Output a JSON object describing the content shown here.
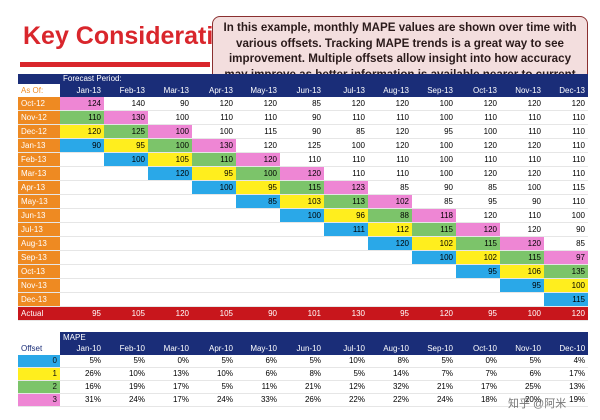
{
  "title": "Key Considerations",
  "callout": "In this example, monthly MAPE values are shown over time with various offsets. Tracking MAPE trends is a great way to see improvement.  Multiple offsets allow insight into how accuracy may improve as better information is available nearer to current period.",
  "forecast_period_label": "Forecast Period:",
  "as_of_label": "As Of:",
  "months": [
    "Jan-13",
    "Feb-13",
    "Mar-13",
    "Apr-13",
    "May-13",
    "Jun-13",
    "Jul-13",
    "Aug-13",
    "Sep-13",
    "Oct-13",
    "Nov-13",
    "Dec-13"
  ],
  "forecast_rows": [
    {
      "label": "Oct-12",
      "cells": [
        [
          "124",
          "pink"
        ],
        [
          "140",
          ""
        ],
        [
          "90",
          ""
        ],
        [
          "120",
          ""
        ],
        [
          "120",
          ""
        ],
        [
          "85",
          ""
        ],
        [
          "120",
          ""
        ],
        [
          "120",
          ""
        ],
        [
          "100",
          ""
        ],
        [
          "120",
          ""
        ],
        [
          "120",
          ""
        ],
        [
          "120",
          ""
        ]
      ]
    },
    {
      "label": "Nov-12",
      "cells": [
        [
          "110",
          "green"
        ],
        [
          "130",
          "pink"
        ],
        [
          "100",
          ""
        ],
        [
          "110",
          ""
        ],
        [
          "110",
          ""
        ],
        [
          "90",
          ""
        ],
        [
          "110",
          ""
        ],
        [
          "110",
          ""
        ],
        [
          "100",
          ""
        ],
        [
          "110",
          ""
        ],
        [
          "110",
          ""
        ],
        [
          "110",
          ""
        ]
      ]
    },
    {
      "label": "Dec-12",
      "cells": [
        [
          "120",
          "yellow"
        ],
        [
          "125",
          "green"
        ],
        [
          "100",
          "pink"
        ],
        [
          "100",
          ""
        ],
        [
          "115",
          ""
        ],
        [
          "90",
          ""
        ],
        [
          "85",
          ""
        ],
        [
          "120",
          ""
        ],
        [
          "95",
          ""
        ],
        [
          "100",
          ""
        ],
        [
          "110",
          ""
        ],
        [
          "110",
          ""
        ]
      ]
    },
    {
      "label": "Jan-13",
      "cells": [
        [
          "90",
          "blue"
        ],
        [
          "95",
          "yellow"
        ],
        [
          "100",
          "green"
        ],
        [
          "130",
          "pink"
        ],
        [
          "120",
          ""
        ],
        [
          "125",
          ""
        ],
        [
          "100",
          ""
        ],
        [
          "120",
          ""
        ],
        [
          "100",
          ""
        ],
        [
          "120",
          ""
        ],
        [
          "120",
          ""
        ],
        [
          "110",
          ""
        ]
      ]
    },
    {
      "label": "Feb-13",
      "cells": [
        [
          "",
          ""
        ],
        [
          "100",
          "blue"
        ],
        [
          "105",
          "yellow"
        ],
        [
          "110",
          "green"
        ],
        [
          "120",
          "pink"
        ],
        [
          "110",
          ""
        ],
        [
          "110",
          ""
        ],
        [
          "110",
          ""
        ],
        [
          "100",
          ""
        ],
        [
          "110",
          ""
        ],
        [
          "110",
          ""
        ],
        [
          "110",
          ""
        ]
      ]
    },
    {
      "label": "Mar-13",
      "cells": [
        [
          "",
          ""
        ],
        [
          "",
          ""
        ],
        [
          "120",
          "blue"
        ],
        [
          "95",
          "yellow"
        ],
        [
          "100",
          "green"
        ],
        [
          "120",
          "pink"
        ],
        [
          "110",
          ""
        ],
        [
          "110",
          ""
        ],
        [
          "100",
          ""
        ],
        [
          "120",
          ""
        ],
        [
          "120",
          ""
        ],
        [
          "110",
          ""
        ]
      ]
    },
    {
      "label": "Apr-13",
      "cells": [
        [
          "",
          ""
        ],
        [
          "",
          ""
        ],
        [
          "",
          ""
        ],
        [
          "100",
          "blue"
        ],
        [
          "95",
          "yellow"
        ],
        [
          "115",
          "green"
        ],
        [
          "123",
          "pink"
        ],
        [
          "85",
          ""
        ],
        [
          "90",
          ""
        ],
        [
          "85",
          ""
        ],
        [
          "100",
          ""
        ],
        [
          "115",
          ""
        ]
      ]
    },
    {
      "label": "May-13",
      "cells": [
        [
          "",
          ""
        ],
        [
          "",
          ""
        ],
        [
          "",
          ""
        ],
        [
          "",
          ""
        ],
        [
          "85",
          "blue"
        ],
        [
          "103",
          "yellow"
        ],
        [
          "113",
          "green"
        ],
        [
          "102",
          "pink"
        ],
        [
          "85",
          ""
        ],
        [
          "95",
          ""
        ],
        [
          "90",
          ""
        ],
        [
          "110",
          ""
        ]
      ]
    },
    {
      "label": "Jun-13",
      "cells": [
        [
          "",
          ""
        ],
        [
          "",
          ""
        ],
        [
          "",
          ""
        ],
        [
          "",
          ""
        ],
        [
          "",
          ""
        ],
        [
          "100",
          "blue"
        ],
        [
          "96",
          "yellow"
        ],
        [
          "88",
          "green"
        ],
        [
          "118",
          "pink"
        ],
        [
          "120",
          ""
        ],
        [
          "110",
          ""
        ],
        [
          "100",
          ""
        ]
      ]
    },
    {
      "label": "Jul-13",
      "cells": [
        [
          "",
          ""
        ],
        [
          "",
          ""
        ],
        [
          "",
          ""
        ],
        [
          "",
          ""
        ],
        [
          "",
          ""
        ],
        [
          "",
          ""
        ],
        [
          "111",
          "blue"
        ],
        [
          "112",
          "yellow"
        ],
        [
          "115",
          "green"
        ],
        [
          "120",
          "pink"
        ],
        [
          "120",
          ""
        ],
        [
          "90",
          ""
        ]
      ]
    },
    {
      "label": "Aug-13",
      "cells": [
        [
          "",
          ""
        ],
        [
          "",
          ""
        ],
        [
          "",
          ""
        ],
        [
          "",
          ""
        ],
        [
          "",
          ""
        ],
        [
          "",
          ""
        ],
        [
          "",
          ""
        ],
        [
          "120",
          "blue"
        ],
        [
          "102",
          "yellow"
        ],
        [
          "115",
          "green"
        ],
        [
          "120",
          "pink"
        ],
        [
          "85",
          ""
        ]
      ]
    },
    {
      "label": "Sep-13",
      "cells": [
        [
          "",
          ""
        ],
        [
          "",
          ""
        ],
        [
          "",
          ""
        ],
        [
          "",
          ""
        ],
        [
          "",
          ""
        ],
        [
          "",
          ""
        ],
        [
          "",
          ""
        ],
        [
          "",
          ""
        ],
        [
          "100",
          "blue"
        ],
        [
          "102",
          "yellow"
        ],
        [
          "115",
          "green"
        ],
        [
          "97",
          "pink"
        ]
      ]
    },
    {
      "label": "Oct-13",
      "cells": [
        [
          "",
          ""
        ],
        [
          "",
          ""
        ],
        [
          "",
          ""
        ],
        [
          "",
          ""
        ],
        [
          "",
          ""
        ],
        [
          "",
          ""
        ],
        [
          "",
          ""
        ],
        [
          "",
          ""
        ],
        [
          "",
          ""
        ],
        [
          "95",
          "blue"
        ],
        [
          "106",
          "yellow"
        ],
        [
          "135",
          "green"
        ]
      ]
    },
    {
      "label": "Nov-13",
      "cells": [
        [
          "",
          ""
        ],
        [
          "",
          ""
        ],
        [
          "",
          ""
        ],
        [
          "",
          ""
        ],
        [
          "",
          ""
        ],
        [
          "",
          ""
        ],
        [
          "",
          ""
        ],
        [
          "",
          ""
        ],
        [
          "",
          ""
        ],
        [
          "",
          ""
        ],
        [
          "95",
          "blue"
        ],
        [
          "100",
          "yellow"
        ]
      ]
    },
    {
      "label": "Dec-13",
      "cells": [
        [
          "",
          ""
        ],
        [
          "",
          ""
        ],
        [
          "",
          ""
        ],
        [
          "",
          ""
        ],
        [
          "",
          ""
        ],
        [
          "",
          ""
        ],
        [
          "",
          ""
        ],
        [
          "",
          ""
        ],
        [
          "",
          ""
        ],
        [
          "",
          ""
        ],
        [
          "",
          ""
        ],
        [
          "115",
          "blue"
        ]
      ]
    }
  ],
  "actual": {
    "label": "Actual",
    "values": [
      "95",
      "105",
      "120",
      "105",
      "90",
      "101",
      "130",
      "95",
      "120",
      "95",
      "100",
      "120"
    ]
  },
  "mape_label": "MAPE",
  "offset_label": "Offset",
  "mape_months": [
    "Jan-10",
    "Feb-10",
    "Mar-10",
    "Apr-10",
    "May-10",
    "Jun-10",
    "Jul-10",
    "Aug-10",
    "Sep-10",
    "Oct-10",
    "Nov-10",
    "Dec-10"
  ],
  "mape_rows": [
    {
      "offset": "0",
      "color": "blue",
      "values": [
        "5%",
        "5%",
        "0%",
        "5%",
        "6%",
        "5%",
        "10%",
        "8%",
        "5%",
        "0%",
        "5%",
        "4%"
      ]
    },
    {
      "offset": "1",
      "color": "yellow",
      "values": [
        "26%",
        "10%",
        "13%",
        "10%",
        "6%",
        "8%",
        "5%",
        "14%",
        "7%",
        "7%",
        "6%",
        "17%"
      ]
    },
    {
      "offset": "2",
      "color": "green",
      "values": [
        "16%",
        "19%",
        "17%",
        "5%",
        "11%",
        "21%",
        "12%",
        "32%",
        "21%",
        "17%",
        "25%",
        "13%"
      ]
    },
    {
      "offset": "3",
      "color": "pink",
      "values": [
        "31%",
        "24%",
        "17%",
        "24%",
        "33%",
        "26%",
        "22%",
        "22%",
        "24%",
        "18%",
        "20%",
        "19%"
      ]
    }
  ],
  "watermark": "知乎 @阿米",
  "colors": {
    "blue": "#2aa8e8",
    "yellow": "#ffee1e",
    "green": "#7cc46a",
    "pink": "#ee86d4",
    "navy": "#1a2d78",
    "orange": "#ee8a22",
    "red": "#c8161c"
  }
}
